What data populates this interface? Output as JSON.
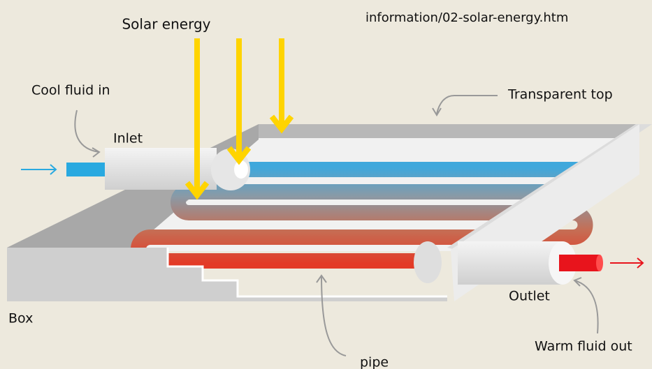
{
  "title": "Solar energy",
  "source": "information/02-solar-energy.htm",
  "labels": {
    "cool_in": "Cool fluid in",
    "inlet": "Inlet",
    "top": "Transparent top",
    "box": "Box",
    "outlet": "Outlet",
    "warm_out": "Warm fluid out",
    "pipe": "pipe"
  }
}
